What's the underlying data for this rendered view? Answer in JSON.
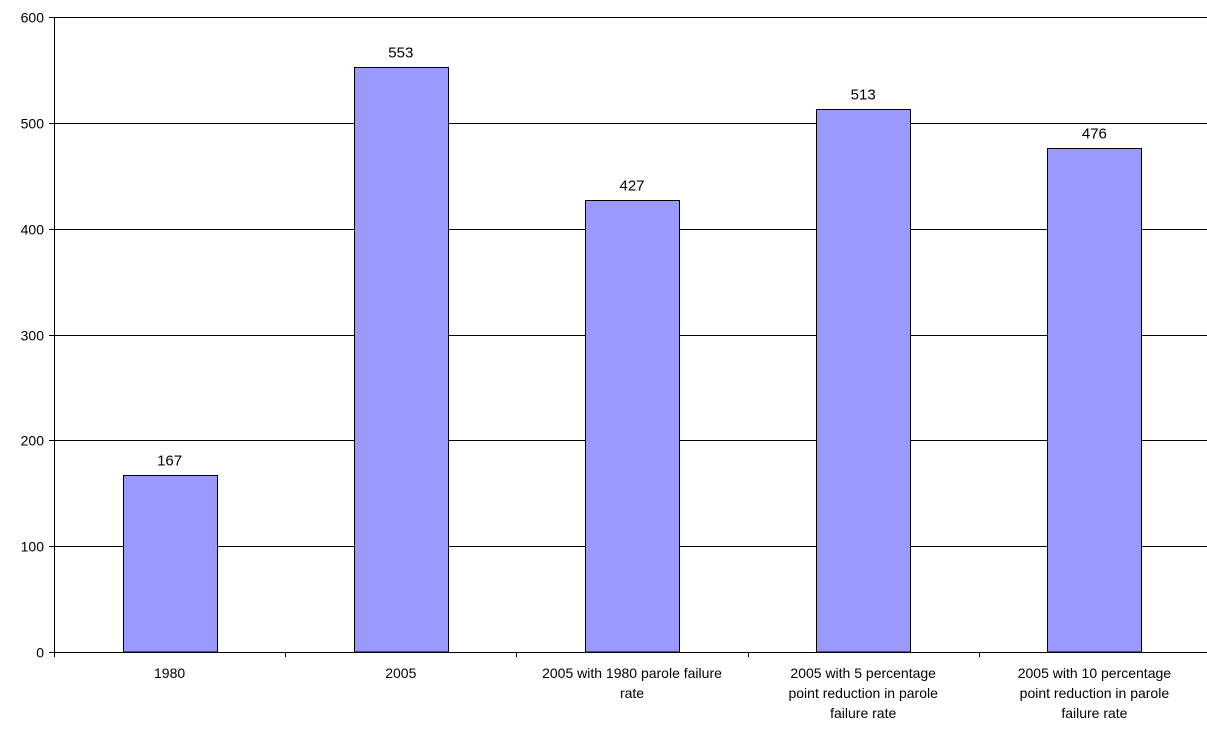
{
  "chart_data": {
    "type": "bar",
    "title": "",
    "xlabel": "",
    "ylabel": "",
    "categories": [
      [
        "1980"
      ],
      [
        "2005"
      ],
      [
        "2005 with 1980 parole failure",
        "rate"
      ],
      [
        "2005 with 5 percentage",
        "point reduction in parole",
        "failure rate"
      ],
      [
        "2005 with 10 percentage",
        "point reduction in parole",
        "failure rate"
      ]
    ],
    "values": [
      167,
      553,
      427,
      513,
      476
    ],
    "data_labels": [
      "167",
      "553",
      "427",
      "513",
      "476"
    ],
    "ylim": [
      0,
      600
    ],
    "yticks": [
      0,
      100,
      200,
      300,
      400,
      500,
      600
    ],
    "ytick_labels": [
      "0",
      "100",
      "200",
      "300",
      "400",
      "500",
      "600"
    ],
    "grid": true,
    "legend": "none",
    "bar_color": "#9999ff",
    "bar_border_color": "#000000",
    "gridline_color": "#000000"
  }
}
